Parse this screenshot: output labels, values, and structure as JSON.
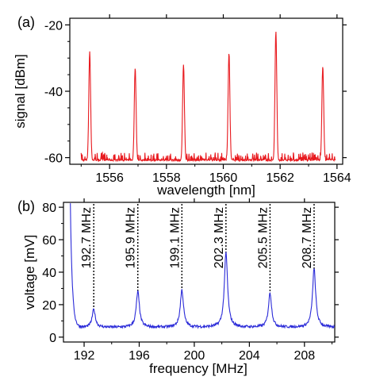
{
  "chart_data": [
    {
      "type": "line",
      "panel_label": "(a)",
      "xlabel": "wavelength [nm]",
      "ylabel": "signal [dBm]",
      "xlim": [
        1554.6,
        1564.2
      ],
      "ylim": [
        -62,
        -18
      ],
      "xticks": [
        1556,
        1558,
        1560,
        1562,
        1564
      ],
      "yticks": [
        -20,
        -40,
        -60
      ],
      "color": "#e8191e",
      "noise_floor": -61,
      "peaks": [
        {
          "x": 1555.3,
          "y": -28
        },
        {
          "x": 1556.9,
          "y": -33
        },
        {
          "x": 1558.6,
          "y": -32
        },
        {
          "x": 1560.2,
          "y": -28.5
        },
        {
          "x": 1561.85,
          "y": -22
        },
        {
          "x": 1563.5,
          "y": -32.5
        }
      ]
    },
    {
      "type": "line",
      "panel_label": "(b)",
      "xlabel": "frequency [MHz]",
      "ylabel": "voltage [mV]",
      "xlim": [
        190.5,
        210.2
      ],
      "ylim": [
        -3,
        83
      ],
      "xticks": [
        192,
        196,
        200,
        204,
        208
      ],
      "yticks": [
        0,
        20,
        40,
        60,
        80
      ],
      "color": "#2a2ad8",
      "baseline": 6,
      "peaks": [
        {
          "x": 192.7,
          "y": 17,
          "label": "192.7 MHz"
        },
        {
          "x": 195.9,
          "y": 28,
          "label": "195.9 MHz"
        },
        {
          "x": 199.1,
          "y": 29,
          "label": "199.1 MHz"
        },
        {
          "x": 202.3,
          "y": 52,
          "label": "202.3 MHz"
        },
        {
          "x": 205.5,
          "y": 27,
          "label": "205.5 MHz"
        },
        {
          "x": 208.7,
          "y": 42,
          "label": "208.7 MHz"
        }
      ],
      "start_value": 82
    }
  ]
}
